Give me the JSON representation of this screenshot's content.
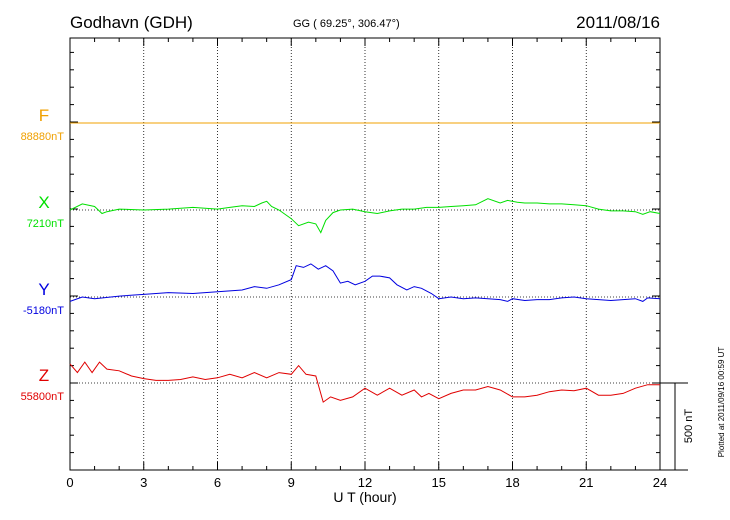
{
  "header": {
    "station": "Godhavn (GDH)",
    "coords": "GG ( 69.25°, 306.47°)",
    "date": "2011/08/16"
  },
  "footer": {
    "plotted": "Plotted at 2011/09/16 00:59 UT",
    "scale_label": "500 nT"
  },
  "chart_data": {
    "type": "line",
    "xlabel": "U T (hour)",
    "xlim": [
      0,
      24
    ],
    "xticks": [
      0,
      3,
      6,
      9,
      12,
      15,
      18,
      21,
      24
    ],
    "scale_nT": 500,
    "grid": true,
    "series": [
      {
        "name": "F",
        "baseline_label": "88880nT",
        "color": "#f0a000",
        "baseline": 88880,
        "x": [
          0,
          24
        ],
        "y": [
          88880,
          88880
        ]
      },
      {
        "name": "X",
        "baseline_label": "7210nT",
        "color": "#00e000",
        "baseline": 7210,
        "x": [
          0,
          0.5,
          1,
          1.3,
          1.5,
          2,
          3,
          4,
          5,
          6,
          6.5,
          7,
          7.5,
          7.8,
          8,
          8.2,
          8.5,
          9,
          9.3,
          9.7,
          10,
          10.2,
          10.4,
          10.7,
          11,
          11.5,
          12,
          12.5,
          13,
          13.5,
          14,
          14.5,
          15,
          15.5,
          16,
          16.5,
          17,
          17.5,
          17.8,
          18.2,
          18.5,
          19,
          19.5,
          20,
          20.5,
          21,
          21.5,
          22,
          22.5,
          23,
          23.3,
          23.6,
          24
        ],
        "y": [
          7210,
          7245,
          7230,
          7190,
          7200,
          7215,
          7210,
          7215,
          7225,
          7215,
          7225,
          7235,
          7230,
          7250,
          7260,
          7230,
          7210,
          7160,
          7120,
          7140,
          7130,
          7080,
          7150,
          7195,
          7210,
          7215,
          7200,
          7190,
          7205,
          7215,
          7215,
          7225,
          7225,
          7230,
          7235,
          7240,
          7275,
          7250,
          7265,
          7255,
          7250,
          7250,
          7245,
          7245,
          7240,
          7235,
          7215,
          7205,
          7205,
          7200,
          7185,
          7200,
          7190
        ]
      },
      {
        "name": "Y",
        "baseline_label": "-5180nT",
        "color": "#0000e0",
        "baseline": -5180,
        "x": [
          0,
          0.5,
          1,
          2,
          3,
          4,
          5,
          6,
          7,
          7.5,
          8,
          8.5,
          9,
          9.2,
          9.5,
          9.8,
          10.1,
          10.4,
          10.7,
          11,
          11.3,
          11.6,
          12,
          12.3,
          12.6,
          13,
          13.3,
          13.7,
          14,
          14.3,
          14.7,
          15,
          15.5,
          16,
          16.5,
          17,
          17.5,
          17.8,
          18,
          18.5,
          19,
          19.5,
          20,
          20.5,
          21,
          21.5,
          22,
          22.5,
          23,
          23.3,
          23.5,
          24
        ],
        "y": [
          -5205,
          -5180,
          -5190,
          -5175,
          -5165,
          -5155,
          -5160,
          -5150,
          -5140,
          -5120,
          -5130,
          -5110,
          -5080,
          -5000,
          -5010,
          -4990,
          -5020,
          -5000,
          -5030,
          -5100,
          -5090,
          -5110,
          -5090,
          -5060,
          -5060,
          -5070,
          -5110,
          -5140,
          -5120,
          -5130,
          -5160,
          -5190,
          -5180,
          -5190,
          -5185,
          -5190,
          -5195,
          -5205,
          -5190,
          -5200,
          -5195,
          -5195,
          -5185,
          -5180,
          -5190,
          -5195,
          -5200,
          -5195,
          -5190,
          -5205,
          -5185,
          -5190
        ]
      },
      {
        "name": "Z",
        "baseline_label": "55800nT",
        "color": "#e00000",
        "baseline": 55800,
        "x": [
          0,
          0.3,
          0.6,
          0.9,
          1.2,
          1.5,
          2,
          2.5,
          3,
          3.5,
          4,
          4.5,
          5,
          5.5,
          6,
          6.5,
          7,
          7.5,
          8,
          8.5,
          9,
          9.3,
          9.6,
          10,
          10.3,
          10.6,
          11,
          11.5,
          12,
          12.5,
          13,
          13.5,
          14,
          14.3,
          14.6,
          15,
          15.5,
          16,
          16.5,
          17,
          17.5,
          18,
          18.5,
          19,
          19.5,
          20,
          20.5,
          21,
          21.5,
          22,
          22.5,
          23,
          23.5,
          24
        ],
        "y": [
          55910,
          55860,
          55920,
          55860,
          55920,
          55880,
          55870,
          55840,
          55825,
          55815,
          55815,
          55820,
          55835,
          55820,
          55830,
          55850,
          55830,
          55860,
          55830,
          55860,
          55850,
          55900,
          55850,
          55840,
          55690,
          55720,
          55700,
          55720,
          55770,
          55730,
          55770,
          55730,
          55760,
          55720,
          55740,
          55710,
          55740,
          55760,
          55760,
          55780,
          55760,
          55720,
          55720,
          55730,
          55750,
          55760,
          55755,
          55770,
          55730,
          55730,
          55740,
          55770,
          55790,
          55790
        ]
      }
    ]
  }
}
